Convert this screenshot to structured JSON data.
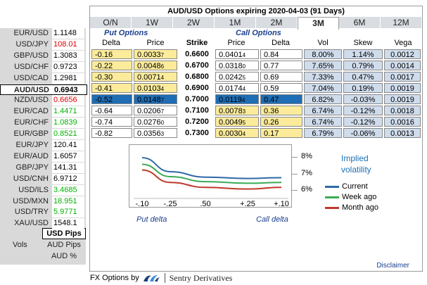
{
  "pairs": [
    {
      "name": "EUR/USD",
      "value": "1.1148",
      "color": "plain"
    },
    {
      "name": "USD/JPY",
      "value": "108.01",
      "color": "red"
    },
    {
      "name": "GBP/USD",
      "value": "1.3083",
      "color": "plain"
    },
    {
      "name": "USD/CHF",
      "value": "0.9723",
      "color": "plain"
    },
    {
      "name": "USD/CAD",
      "value": "1.2981",
      "color": "plain"
    },
    {
      "name": "AUD/USD",
      "value": "0.6943",
      "color": "plain",
      "active": true
    },
    {
      "name": "NZD/USD",
      "value": "0.6656",
      "color": "red"
    },
    {
      "name": "EUR/CAD",
      "value": "1.4471",
      "color": "green"
    },
    {
      "name": "EUR/CHF",
      "value": "1.0839",
      "color": "green"
    },
    {
      "name": "EUR/GBP",
      "value": "0.8521",
      "color": "green"
    },
    {
      "name": "EUR/JPY",
      "value": "120.41",
      "color": "plain"
    },
    {
      "name": "EUR/AUD",
      "value": "1.6057",
      "color": "plain"
    },
    {
      "name": "GBP/JPY",
      "value": "141.31",
      "color": "plain"
    },
    {
      "name": "USD/CNH",
      "value": "6.9712",
      "color": "plain"
    },
    {
      "name": "USD/ILS",
      "value": "3.4685",
      "color": "green"
    },
    {
      "name": "USD/MXN",
      "value": "18.951",
      "color": "green"
    },
    {
      "name": "USD/TRY",
      "value": "5.9771",
      "color": "green"
    },
    {
      "name": "XAU/USD",
      "value": "1548.1",
      "color": "plain"
    }
  ],
  "units": {
    "usd_pips": "USD Pips",
    "vols": "Vols",
    "aud_pips": "AUD Pips",
    "aud_pct": "AUD %"
  },
  "title": "AUD/USD Options expiring 2020-04-03 (91 Days)",
  "tabs": [
    "O/N",
    "1W",
    "2W",
    "1M",
    "2M",
    "3M",
    "6M",
    "12M"
  ],
  "active_tab": "3M",
  "headers": {
    "put_group": "Put Options",
    "call_group": "Call Options",
    "put_delta": "Delta",
    "put_price": "Price",
    "strike": "Strike",
    "call_price": "Price",
    "call_delta": "Delta",
    "vol": "Vol",
    "skew": "Skew",
    "vega": "Vega"
  },
  "rows": [
    {
      "put_delta": "-0.16",
      "put_price": "0.0033",
      "put_price_sub": "7",
      "strike": "0.6600",
      "call_price": "0.0401",
      "call_price_sub": "4",
      "call_delta": "0.84",
      "vol": "8.00%",
      "skew": "1.14%",
      "vega": "0.0012"
    },
    {
      "put_delta": "-0.22",
      "put_price": "0.0048",
      "put_price_sub": "6",
      "strike": "0.6700",
      "call_price": "0.0318",
      "call_price_sub": "0",
      "call_delta": "0.77",
      "vol": "7.65%",
      "skew": "0.79%",
      "vega": "0.0014"
    },
    {
      "put_delta": "-0.30",
      "put_price": "0.0071",
      "put_price_sub": "4",
      "strike": "0.6800",
      "call_price": "0.0242",
      "call_price_sub": "5",
      "call_delta": "0.69",
      "vol": "7.33%",
      "skew": "0.47%",
      "vega": "0.0017"
    },
    {
      "put_delta": "-0.41",
      "put_price": "0.0103",
      "put_price_sub": "4",
      "strike": "0.6900",
      "call_price": "0.0174",
      "call_price_sub": "4",
      "call_delta": "0.59",
      "vol": "7.04%",
      "skew": "0.19%",
      "vega": "0.0019"
    },
    {
      "put_delta": "-0.52",
      "put_price": "0.0148",
      "put_price_sub": "7",
      "strike": "0.7000",
      "call_price": "0.0119",
      "call_price_sub": "4",
      "call_delta": "0.47",
      "vol": "6.82%",
      "skew": "-0.03%",
      "vega": "0.0019",
      "atm": true
    },
    {
      "put_delta": "-0.64",
      "put_price": "0.0206",
      "put_price_sub": "7",
      "strike": "0.7100",
      "call_price": "0.0078",
      "call_price_sub": "3",
      "call_delta": "0.36",
      "vol": "6.74%",
      "skew": "-0.12%",
      "vega": "0.0018"
    },
    {
      "put_delta": "-0.74",
      "put_price": "0.0276",
      "put_price_sub": "0",
      "strike": "0.7200",
      "call_price": "0.0049",
      "call_price_sub": "5",
      "call_delta": "0.26",
      "vol": "6.74%",
      "skew": "-0.12%",
      "vega": "0.0016"
    },
    {
      "put_delta": "-0.82",
      "put_price": "0.0356",
      "put_price_sub": "3",
      "strike": "0.7300",
      "call_price": "0.0030",
      "call_price_sub": "4",
      "call_delta": "0.17",
      "vol": "6.79%",
      "skew": "-0.06%",
      "vega": "0.0013"
    }
  ],
  "chart_data": {
    "type": "line",
    "x": [
      -0.1,
      -0.25,
      0.5,
      0.25,
      0.1
    ],
    "x_tick_labels": [
      "-.10",
      "-.25",
      ".50",
      "+.25",
      "+.10"
    ],
    "y_tick_labels": [
      "8%",
      "7%",
      "6%"
    ],
    "ylim": [
      5.7,
      8.6
    ],
    "series": [
      {
        "name": "Current",
        "color": "#2e6aa6",
        "values": [
          8.0,
          7.15,
          6.82,
          6.74,
          6.79
        ]
      },
      {
        "name": "Week ago",
        "color": "#3bab55",
        "values": [
          7.6,
          6.85,
          6.55,
          6.45,
          6.5
        ]
      },
      {
        "name": "Month ago",
        "color": "#c0392b",
        "values": [
          7.25,
          6.5,
          6.2,
          6.1,
          6.2
        ]
      }
    ],
    "legend_title_line1": "Implied",
    "legend_title_line2": "volatility",
    "put_label": "Put delta",
    "call_label": "Call delta"
  },
  "disclaimer": "Disclaimer",
  "footer": {
    "prefix": "FX Options by",
    "brand": "Sentry Derivatives"
  }
}
